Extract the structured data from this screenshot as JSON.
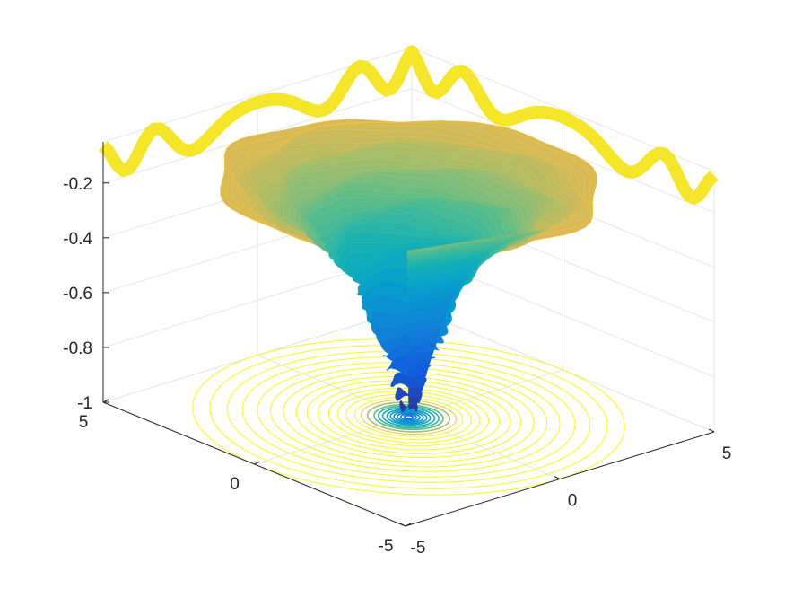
{
  "chart_data": {
    "type": "surface",
    "title": "",
    "xlabel": "",
    "ylabel": "",
    "zlabel": "",
    "xlim": [
      -5,
      5
    ],
    "ylim": [
      -5,
      5
    ],
    "zlim": [
      -1,
      -0.05
    ],
    "grid": true,
    "colormap": "parula",
    "x_ticks": [
      "-5",
      "0",
      "5"
    ],
    "y_ticks": [
      "-5",
      "0",
      "5"
    ],
    "z_ticks": [
      "-1",
      "-0.8",
      "-0.6",
      "-0.4",
      "-0.2"
    ],
    "surface": {
      "r_samples": [
        0,
        0.2,
        0.35,
        0.5,
        0.7,
        0.9,
        1.1,
        1.3,
        1.6,
        1.9,
        2.2,
        2.6,
        3.0,
        3.5,
        4.0,
        4.5,
        5.0
      ],
      "z_values": [
        -0.98,
        -0.96,
        -0.9,
        -0.82,
        -0.74,
        -0.66,
        -0.58,
        -0.5,
        -0.44,
        -0.38,
        -0.33,
        -0.28,
        -0.24,
        -0.2,
        -0.17,
        -0.15,
        -0.13
      ],
      "edge_ripple_amplitude": 0.06
    },
    "contour": {
      "z_level": -1,
      "radii": [
        0.1,
        0.18,
        0.26,
        0.34,
        0.42,
        0.5,
        0.6,
        0.7,
        0.8,
        0.95,
        1.1,
        1.25,
        1.45,
        1.65,
        1.85,
        2.1,
        2.35,
        2.6,
        2.9,
        3.2,
        3.5,
        3.85,
        4.2,
        4.6,
        5.0
      ]
    }
  }
}
